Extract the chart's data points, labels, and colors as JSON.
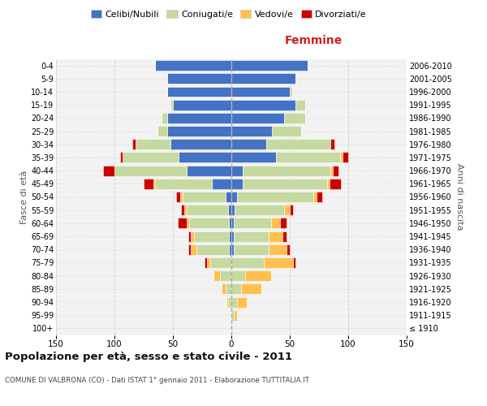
{
  "age_groups": [
    "100+",
    "95-99",
    "90-94",
    "85-89",
    "80-84",
    "75-79",
    "70-74",
    "65-69",
    "60-64",
    "55-59",
    "50-54",
    "45-49",
    "40-44",
    "35-39",
    "30-34",
    "25-29",
    "20-24",
    "15-19",
    "10-14",
    "5-9",
    "0-4"
  ],
  "birth_years": [
    "≤ 1910",
    "1911-1915",
    "1916-1920",
    "1921-1925",
    "1926-1930",
    "1931-1935",
    "1936-1940",
    "1941-1945",
    "1946-1950",
    "1951-1955",
    "1956-1960",
    "1961-1965",
    "1966-1970",
    "1971-1975",
    "1976-1980",
    "1981-1985",
    "1986-1990",
    "1991-1995",
    "1996-2000",
    "2001-2005",
    "2006-2010"
  ],
  "male_celibi": [
    0,
    0,
    0,
    0,
    0,
    0,
    2,
    2,
    2,
    3,
    5,
    17,
    38,
    45,
    52,
    55,
    55,
    50,
    55,
    55,
    65
  ],
  "male_coniugati": [
    0,
    1,
    3,
    5,
    10,
    18,
    28,
    30,
    34,
    35,
    37,
    48,
    62,
    48,
    30,
    8,
    5,
    2,
    0,
    0,
    0
  ],
  "male_vedovi": [
    0,
    0,
    1,
    3,
    5,
    3,
    5,
    3,
    2,
    2,
    2,
    2,
    0,
    0,
    0,
    0,
    0,
    0,
    0,
    0,
    0
  ],
  "male_divorziati": [
    0,
    0,
    0,
    0,
    0,
    2,
    2,
    2,
    8,
    3,
    3,
    8,
    10,
    2,
    3,
    0,
    0,
    0,
    0,
    0,
    0
  ],
  "female_nubili": [
    0,
    0,
    0,
    0,
    0,
    0,
    2,
    2,
    2,
    3,
    5,
    10,
    10,
    38,
    30,
    35,
    45,
    55,
    50,
    55,
    65
  ],
  "female_coniugate": [
    0,
    2,
    5,
    8,
    12,
    28,
    30,
    30,
    32,
    42,
    65,
    72,
    75,
    55,
    55,
    25,
    18,
    8,
    2,
    0,
    0
  ],
  "female_vedove": [
    0,
    3,
    8,
    18,
    22,
    25,
    15,
    12,
    8,
    5,
    3,
    2,
    2,
    2,
    0,
    0,
    0,
    0,
    0,
    0,
    0
  ],
  "female_divorziate": [
    0,
    0,
    0,
    0,
    0,
    2,
    3,
    3,
    5,
    3,
    5,
    10,
    5,
    5,
    3,
    0,
    0,
    0,
    0,
    0,
    0
  ],
  "color_celibi": "#4472c4",
  "color_coniugati": "#c5d9a0",
  "color_vedovi": "#ffc04d",
  "color_divorziati": "#cc0000",
  "xlim": 150,
  "title": "Popolazione per età, sesso e stato civile - 2011",
  "subtitle": "COMUNE DI VALBRONA (CO) - Dati ISTAT 1° gennaio 2011 - Elaborazione TUTTITALIA.IT",
  "ylabel_left": "Fasce di età",
  "ylabel_right": "Anni di nascita",
  "label_femmine": "Femmine",
  "legend_labels": [
    "Celibi/Nubili",
    "Coniugati/e",
    "Vedovi/e",
    "Divorziati/e"
  ],
  "bg_color": "#f2f2f2",
  "xticks": [
    -150,
    -100,
    -50,
    0,
    50,
    100,
    150
  ],
  "xtick_labels": [
    "150",
    "100",
    "50",
    "0",
    "50",
    "100",
    "150"
  ]
}
